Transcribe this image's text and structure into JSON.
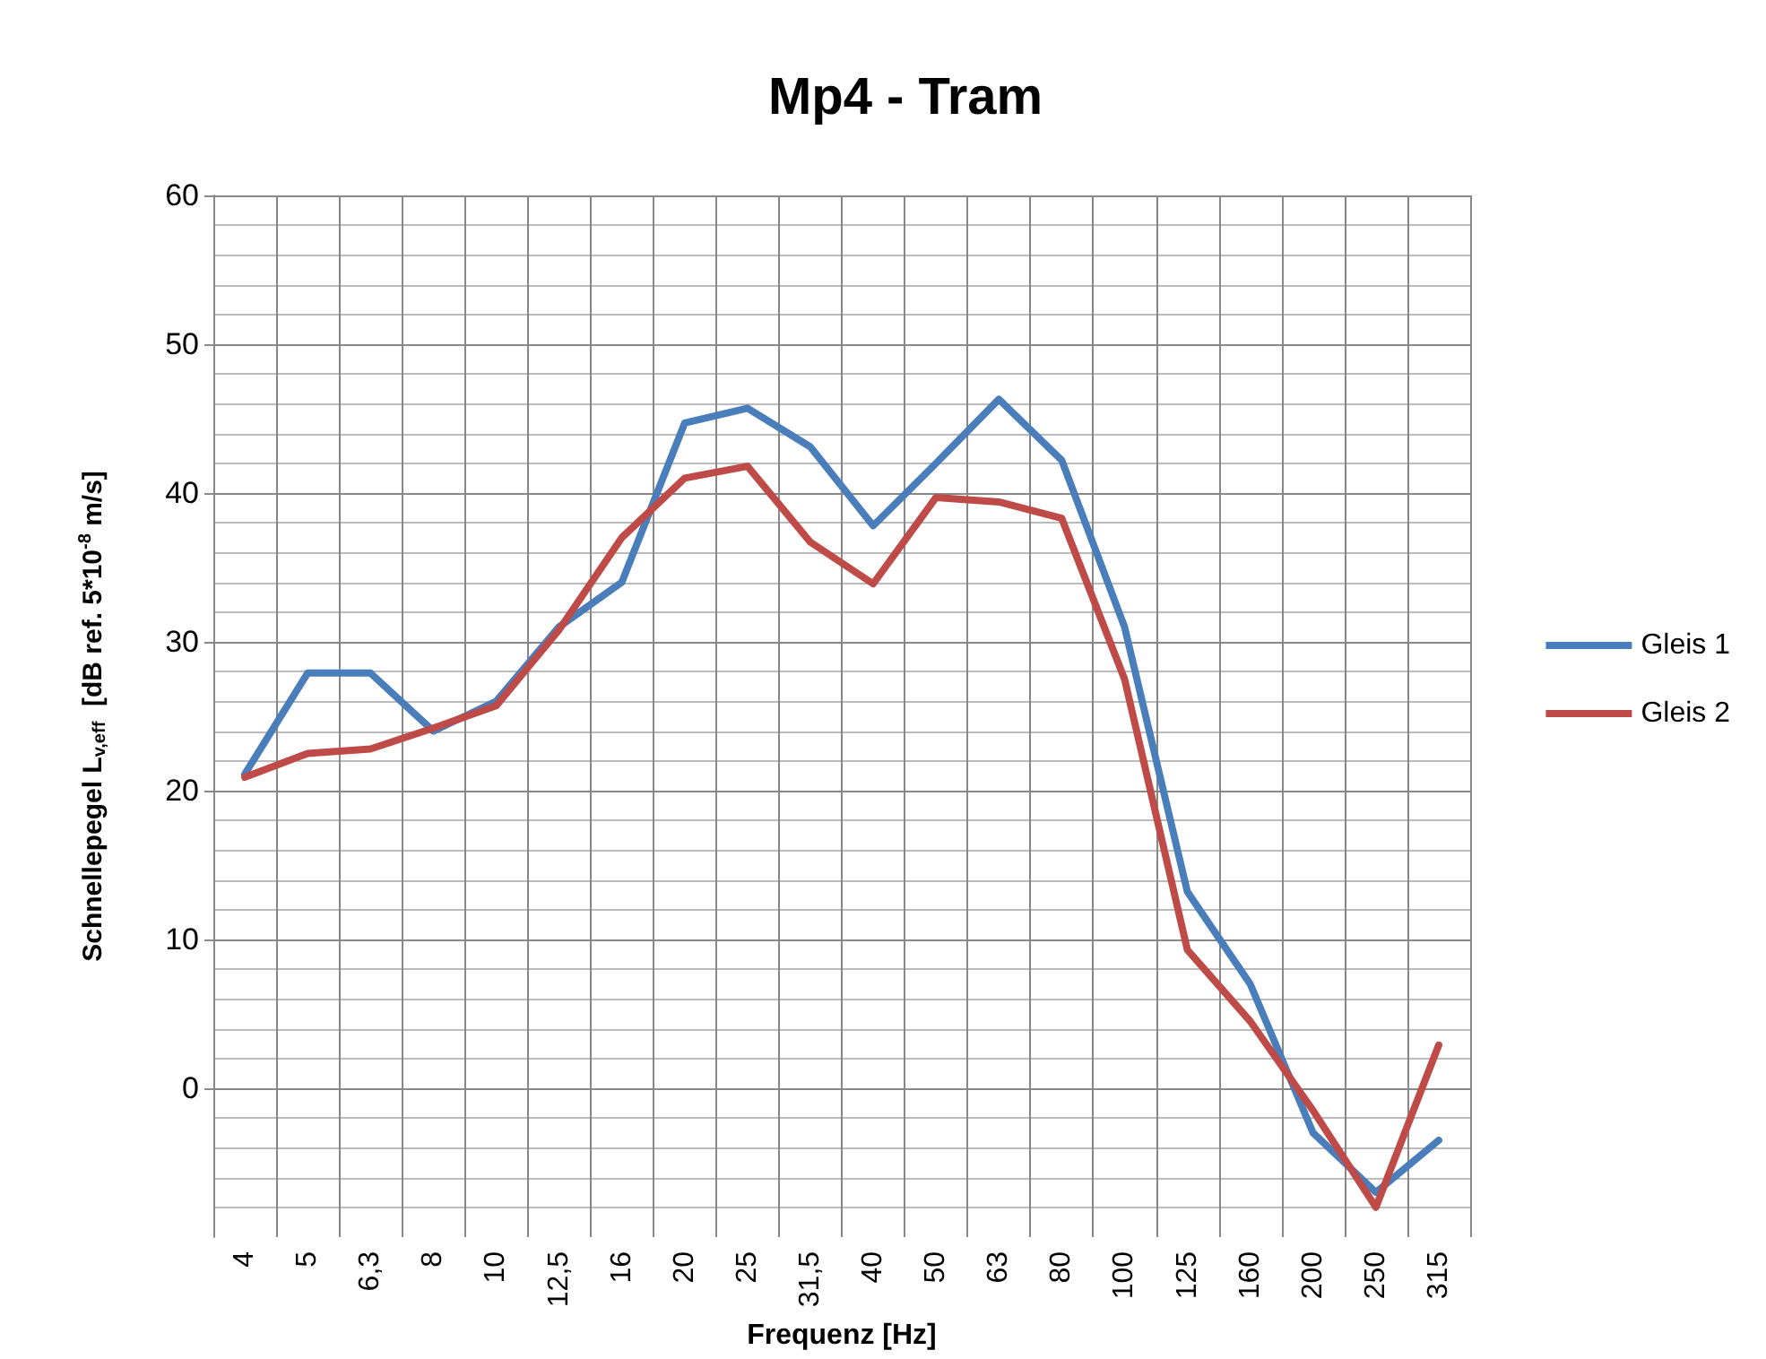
{
  "chart_data": {
    "type": "line",
    "title": "Mp4 - Tram",
    "xlabel": "Frequenz [Hz]",
    "ylabel": "Schnellepegel L$_{v,eff}$  [dB ref. 5*10$^{-8}$ m/s]",
    "categories": [
      "4",
      "5",
      "6,3",
      "8",
      "10",
      "12,5",
      "16",
      "20",
      "25",
      "31,5",
      "40",
      "50",
      "63",
      "80",
      "100",
      "125",
      "160",
      "200",
      "250",
      "315"
    ],
    "series": [
      {
        "name": "Gleis 1",
        "color": "#4a7ebb",
        "values": [
          21.1,
          27.9,
          27.9,
          24,
          26,
          31,
          34,
          44.7,
          45.7,
          43.1,
          37.8,
          42,
          46.3,
          42.2,
          31,
          13.2,
          7,
          -3,
          -7,
          -3.5
        ]
      },
      {
        "name": "Gleis 2",
        "color": "#be4b48",
        "values": [
          20.9,
          22.5,
          22.8,
          24.2,
          25.7,
          30.8,
          37,
          41,
          41.8,
          36.7,
          33.9,
          39.7,
          39.4,
          38.3,
          27.5,
          9.3,
          4.5,
          -1.5,
          -8,
          2.9
        ]
      }
    ],
    "ylim": [
      -10,
      60
    ],
    "yticks": [
      0,
      10,
      20,
      30,
      40,
      50,
      60
    ],
    "grid": true,
    "legend": "right",
    "marker": "none",
    "line_style": "solid"
  }
}
